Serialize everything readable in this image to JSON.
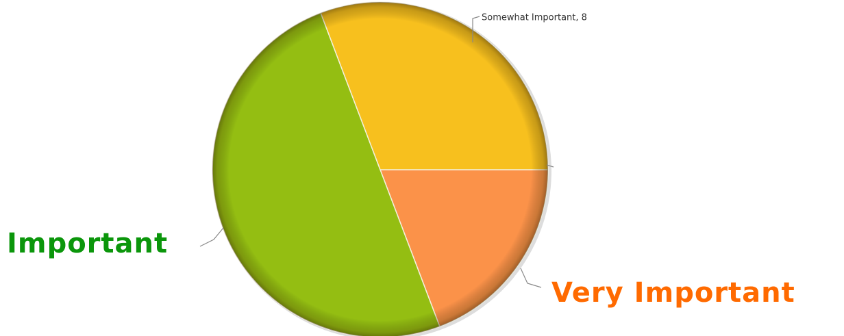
{
  "chart_data": {
    "type": "pie",
    "categories": [
      "Very Important",
      "Important",
      "Somewhat Important, 8"
    ],
    "values": [
      5,
      13,
      8
    ],
    "colors": [
      "#fb9249",
      "#94be12",
      "#f7c01e"
    ],
    "label_colors": [
      "#ff6a00",
      "#0b960b",
      "#333333"
    ]
  }
}
